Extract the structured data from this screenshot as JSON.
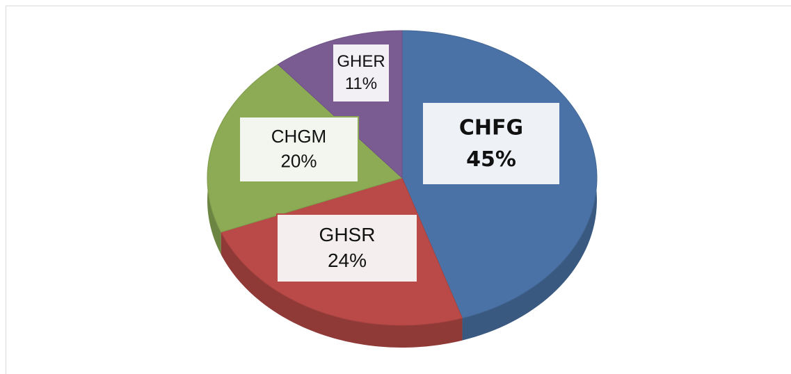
{
  "chart_data": {
    "type": "pie3d",
    "categories": [
      "CHFG",
      "GHSR",
      "CHGM",
      "GHER"
    ],
    "values": [
      45,
      24,
      20,
      11
    ],
    "value_labels": [
      "45%",
      "24%",
      "20%",
      "11%"
    ],
    "colors": [
      "#4a72a6",
      "#b94a48",
      "#8cab54",
      "#7a5c93"
    ]
  }
}
